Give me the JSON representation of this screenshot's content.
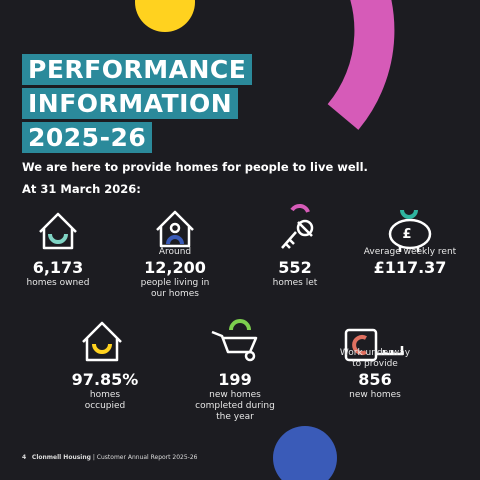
{
  "header": {
    "title_lines": [
      "PERFORMANCE",
      "INFORMATION",
      "2025-26"
    ],
    "subtitle": "We are here to provide homes for people to live well.",
    "date": "At 31 March 2026:"
  },
  "stats": [
    {
      "pre": [],
      "value": "6,173",
      "post": [
        "homes owned"
      ]
    },
    {
      "pre": [
        "Around"
      ],
      "value": "12,200",
      "post": [
        "people living in",
        "our homes"
      ]
    },
    {
      "pre": [],
      "value": "552",
      "post": [
        "homes let"
      ]
    },
    {
      "pre": [
        "Average weekly rent"
      ],
      "value": "£117.37",
      "post": []
    },
    {
      "pre": [],
      "value": "97.85%",
      "post": [
        "homes",
        "occupied"
      ]
    },
    {
      "pre": [],
      "value": "199",
      "post": [
        "new homes",
        "completed during",
        "the year"
      ]
    },
    {
      "pre": [
        "Work underway",
        "to provide"
      ],
      "value": "856",
      "post": [
        "new homes"
      ]
    }
  ],
  "footer": {
    "page": "4",
    "org": "Clonmell Housing",
    "separator": "|",
    "report": "Customer Annual Report 2025-26"
  }
}
